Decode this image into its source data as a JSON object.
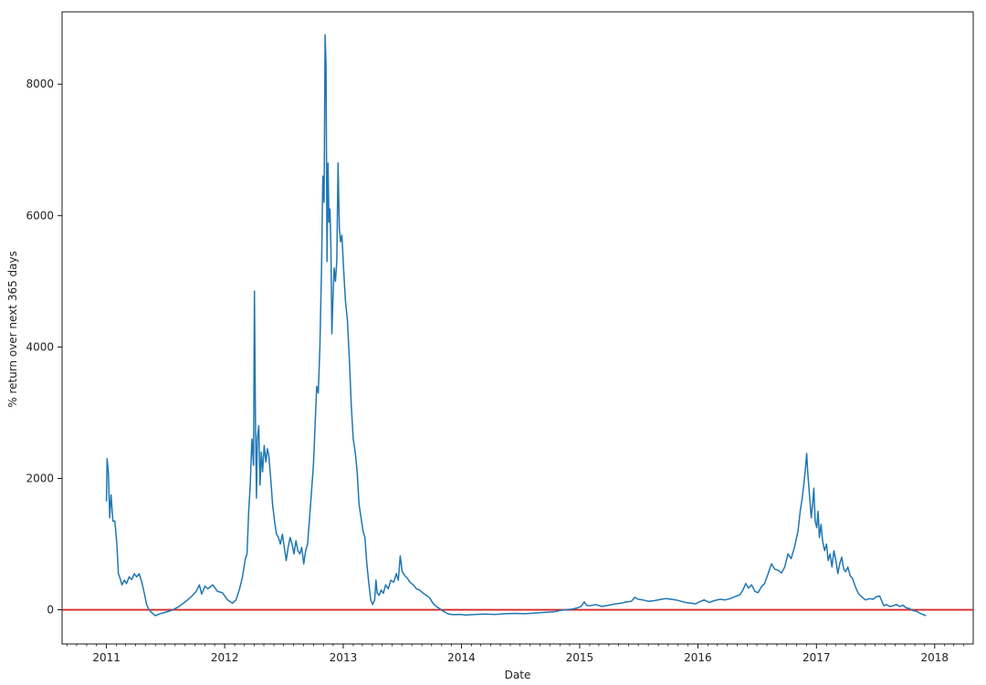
{
  "chart_data": {
    "type": "line",
    "xlabel": "Date",
    "ylabel": "% return over next 365 days",
    "xlim": [
      "2010-08-17",
      "2018-04-30"
    ],
    "ylim": [
      -520,
      9100
    ],
    "yticks": [
      0,
      2000,
      4000,
      6000,
      8000
    ],
    "ytick_labels": [
      "0",
      "2000",
      "4000",
      "6000",
      "8000"
    ],
    "xticks": [
      {
        "label": "2011",
        "date": "2011-01-01"
      },
      {
        "label": "2012",
        "date": "2012-01-01"
      },
      {
        "label": "2013",
        "date": "2013-01-01"
      },
      {
        "label": "2014",
        "date": "2014-01-01"
      },
      {
        "label": "2015",
        "date": "2015-01-01"
      },
      {
        "label": "2016",
        "date": "2016-01-01"
      },
      {
        "label": "2017",
        "date": "2017-01-01"
      },
      {
        "label": "2018",
        "date": "2018-01-01"
      }
    ],
    "grid": false,
    "reference_line": {
      "y": 0,
      "color": "#d62728"
    },
    "series": [
      {
        "color": "#1f77b4",
        "points": [
          [
            "2011-01-01",
            1650
          ],
          [
            "2011-01-03",
            2300
          ],
          [
            "2011-01-07",
            2100
          ],
          [
            "2011-01-11",
            1400
          ],
          [
            "2011-01-15",
            1750
          ],
          [
            "2011-01-21",
            1350
          ],
          [
            "2011-01-27",
            1350
          ],
          [
            "2011-02-02",
            1000
          ],
          [
            "2011-02-07",
            550
          ],
          [
            "2011-02-12",
            480
          ],
          [
            "2011-02-18",
            380
          ],
          [
            "2011-02-25",
            450
          ],
          [
            "2011-03-04",
            400
          ],
          [
            "2011-03-12",
            500
          ],
          [
            "2011-03-20",
            460
          ],
          [
            "2011-03-28",
            550
          ],
          [
            "2011-04-04",
            500
          ],
          [
            "2011-04-12",
            550
          ],
          [
            "2011-04-20",
            420
          ],
          [
            "2011-04-28",
            250
          ],
          [
            "2011-05-05",
            80
          ],
          [
            "2011-05-12",
            0
          ],
          [
            "2011-05-20",
            -40
          ],
          [
            "2011-06-01",
            -90
          ],
          [
            "2011-06-15",
            -60
          ],
          [
            "2011-07-01",
            -40
          ],
          [
            "2011-07-20",
            -10
          ],
          [
            "2011-08-10",
            40
          ],
          [
            "2011-09-01",
            120
          ],
          [
            "2011-09-20",
            200
          ],
          [
            "2011-10-05",
            280
          ],
          [
            "2011-10-15",
            380
          ],
          [
            "2011-10-22",
            240
          ],
          [
            "2011-11-01",
            360
          ],
          [
            "2011-11-10",
            320
          ],
          [
            "2011-11-25",
            380
          ],
          [
            "2011-12-10",
            280
          ],
          [
            "2011-12-25",
            260
          ],
          [
            "2012-01-10",
            150
          ],
          [
            "2012-01-25",
            100
          ],
          [
            "2012-02-05",
            150
          ],
          [
            "2012-02-15",
            300
          ],
          [
            "2012-02-25",
            500
          ],
          [
            "2012-03-05",
            780
          ],
          [
            "2012-03-10",
            850
          ],
          [
            "2012-03-15",
            1500
          ],
          [
            "2012-03-20",
            1900
          ],
          [
            "2012-03-25",
            2600
          ],
          [
            "2012-03-30",
            2200
          ],
          [
            "2012-04-02",
            4850
          ],
          [
            "2012-04-05",
            2900
          ],
          [
            "2012-04-08",
            1700
          ],
          [
            "2012-04-11",
            2600
          ],
          [
            "2012-04-15",
            2800
          ],
          [
            "2012-04-19",
            1900
          ],
          [
            "2012-04-23",
            2400
          ],
          [
            "2012-04-27",
            2100
          ],
          [
            "2012-05-02",
            2500
          ],
          [
            "2012-05-07",
            2250
          ],
          [
            "2012-05-12",
            2450
          ],
          [
            "2012-05-16",
            2350
          ],
          [
            "2012-05-22",
            2000
          ],
          [
            "2012-05-28",
            1600
          ],
          [
            "2012-06-03",
            1350
          ],
          [
            "2012-06-09",
            1150
          ],
          [
            "2012-06-15",
            1100
          ],
          [
            "2012-06-21",
            1000
          ],
          [
            "2012-06-27",
            1150
          ],
          [
            "2012-07-03",
            950
          ],
          [
            "2012-07-09",
            750
          ],
          [
            "2012-07-15",
            950
          ],
          [
            "2012-07-21",
            1100
          ],
          [
            "2012-07-27",
            1000
          ],
          [
            "2012-08-02",
            850
          ],
          [
            "2012-08-08",
            1050
          ],
          [
            "2012-08-14",
            900
          ],
          [
            "2012-08-20",
            850
          ],
          [
            "2012-08-26",
            950
          ],
          [
            "2012-09-01",
            700
          ],
          [
            "2012-09-07",
            900
          ],
          [
            "2012-09-13",
            1000
          ],
          [
            "2012-09-19",
            1400
          ],
          [
            "2012-09-25",
            1800
          ],
          [
            "2012-10-01",
            2200
          ],
          [
            "2012-10-06",
            2800
          ],
          [
            "2012-10-11",
            3400
          ],
          [
            "2012-10-16",
            3300
          ],
          [
            "2012-10-21",
            4000
          ],
          [
            "2012-10-26",
            5200
          ],
          [
            "2012-10-30",
            6600
          ],
          [
            "2012-11-03",
            6200
          ],
          [
            "2012-11-06",
            8750
          ],
          [
            "2012-11-09",
            8300
          ],
          [
            "2012-11-12",
            5300
          ],
          [
            "2012-11-15",
            6800
          ],
          [
            "2012-11-18",
            5900
          ],
          [
            "2012-11-21",
            6100
          ],
          [
            "2012-11-24",
            5500
          ],
          [
            "2012-11-27",
            4200
          ],
          [
            "2012-11-30",
            4700
          ],
          [
            "2012-12-04",
            5200
          ],
          [
            "2012-12-08",
            5000
          ],
          [
            "2012-12-12",
            5300
          ],
          [
            "2012-12-16",
            6800
          ],
          [
            "2012-12-20",
            5800
          ],
          [
            "2012-12-24",
            5600
          ],
          [
            "2012-12-28",
            5700
          ],
          [
            "2013-01-02",
            5200
          ],
          [
            "2013-01-08",
            4700
          ],
          [
            "2013-01-14",
            4400
          ],
          [
            "2013-01-20",
            3800
          ],
          [
            "2013-01-26",
            3100
          ],
          [
            "2013-02-01",
            2600
          ],
          [
            "2013-02-07",
            2400
          ],
          [
            "2013-02-13",
            2100
          ],
          [
            "2013-02-19",
            1600
          ],
          [
            "2013-02-25",
            1400
          ],
          [
            "2013-03-03",
            1200
          ],
          [
            "2013-03-09",
            1100
          ],
          [
            "2013-03-15",
            700
          ],
          [
            "2013-03-21",
            400
          ],
          [
            "2013-03-27",
            150
          ],
          [
            "2013-04-02",
            80
          ],
          [
            "2013-04-08",
            150
          ],
          [
            "2013-04-12",
            450
          ],
          [
            "2013-04-16",
            250
          ],
          [
            "2013-04-22",
            220
          ],
          [
            "2013-04-28",
            300
          ],
          [
            "2013-05-05",
            250
          ],
          [
            "2013-05-12",
            380
          ],
          [
            "2013-05-20",
            320
          ],
          [
            "2013-05-28",
            450
          ],
          [
            "2013-06-06",
            420
          ],
          [
            "2013-06-14",
            550
          ],
          [
            "2013-06-20",
            450
          ],
          [
            "2013-06-26",
            820
          ],
          [
            "2013-07-02",
            580
          ],
          [
            "2013-07-10",
            520
          ],
          [
            "2013-07-18",
            480
          ],
          [
            "2013-07-26",
            420
          ],
          [
            "2013-08-05",
            380
          ],
          [
            "2013-08-15",
            320
          ],
          [
            "2013-08-25",
            300
          ],
          [
            "2013-09-05",
            250
          ],
          [
            "2013-09-15",
            220
          ],
          [
            "2013-09-25",
            180
          ],
          [
            "2013-10-05",
            100
          ],
          [
            "2013-10-15",
            50
          ],
          [
            "2013-10-25",
            20
          ],
          [
            "2013-11-05",
            -20
          ],
          [
            "2013-11-20",
            -60
          ],
          [
            "2013-12-05",
            -75
          ],
          [
            "2013-12-25",
            -70
          ],
          [
            "2014-01-15",
            -80
          ],
          [
            "2014-02-15",
            -70
          ],
          [
            "2014-03-15",
            -65
          ],
          [
            "2014-04-15",
            -70
          ],
          [
            "2014-05-15",
            -60
          ],
          [
            "2014-06-15",
            -55
          ],
          [
            "2014-07-15",
            -60
          ],
          [
            "2014-08-15",
            -50
          ],
          [
            "2014-09-15",
            -40
          ],
          [
            "2014-10-15",
            -30
          ],
          [
            "2014-11-01",
            -10
          ],
          [
            "2014-11-20",
            0
          ],
          [
            "2014-12-10",
            10
          ],
          [
            "2014-12-25",
            30
          ],
          [
            "2015-01-05",
            50
          ],
          [
            "2015-01-15",
            120
          ],
          [
            "2015-01-22",
            70
          ],
          [
            "2015-02-01",
            60
          ],
          [
            "2015-02-20",
            80
          ],
          [
            "2015-03-10",
            50
          ],
          [
            "2015-04-01",
            70
          ],
          [
            "2015-04-20",
            90
          ],
          [
            "2015-05-10",
            100
          ],
          [
            "2015-05-25",
            120
          ],
          [
            "2015-06-10",
            130
          ],
          [
            "2015-06-20",
            190
          ],
          [
            "2015-07-01",
            160
          ],
          [
            "2015-07-15",
            150
          ],
          [
            "2015-08-01",
            130
          ],
          [
            "2015-08-20",
            140
          ],
          [
            "2015-09-10",
            160
          ],
          [
            "2015-09-25",
            170
          ],
          [
            "2015-10-10",
            160
          ],
          [
            "2015-10-25",
            150
          ],
          [
            "2015-11-10",
            130
          ],
          [
            "2015-11-25",
            110
          ],
          [
            "2015-12-10",
            100
          ],
          [
            "2015-12-25",
            90
          ],
          [
            "2016-01-05",
            120
          ],
          [
            "2016-01-20",
            150
          ],
          [
            "2016-02-05",
            110
          ],
          [
            "2016-02-20",
            140
          ],
          [
            "2016-03-10",
            160
          ],
          [
            "2016-03-25",
            150
          ],
          [
            "2016-04-10",
            170
          ],
          [
            "2016-04-25",
            200
          ],
          [
            "2016-05-10",
            230
          ],
          [
            "2016-05-20",
            310
          ],
          [
            "2016-05-28",
            400
          ],
          [
            "2016-06-05",
            330
          ],
          [
            "2016-06-15",
            380
          ],
          [
            "2016-06-25",
            280
          ],
          [
            "2016-07-05",
            260
          ],
          [
            "2016-07-15",
            350
          ],
          [
            "2016-07-25",
            400
          ],
          [
            "2016-08-05",
            550
          ],
          [
            "2016-08-15",
            700
          ],
          [
            "2016-08-25",
            620
          ],
          [
            "2016-09-05",
            600
          ],
          [
            "2016-09-15",
            560
          ],
          [
            "2016-09-25",
            650
          ],
          [
            "2016-10-05",
            850
          ],
          [
            "2016-10-15",
            780
          ],
          [
            "2016-10-25",
            950
          ],
          [
            "2016-11-05",
            1200
          ],
          [
            "2016-11-12",
            1500
          ],
          [
            "2016-11-18",
            1700
          ],
          [
            "2016-11-24",
            1950
          ],
          [
            "2016-11-28",
            2150
          ],
          [
            "2016-12-02",
            2380
          ],
          [
            "2016-12-05",
            2100
          ],
          [
            "2016-12-08",
            1900
          ],
          [
            "2016-12-12",
            1650
          ],
          [
            "2016-12-16",
            1400
          ],
          [
            "2016-12-20",
            1600
          ],
          [
            "2016-12-24",
            1850
          ],
          [
            "2016-12-28",
            1350
          ],
          [
            "2017-01-02",
            1250
          ],
          [
            "2017-01-06",
            1500
          ],
          [
            "2017-01-10",
            1100
          ],
          [
            "2017-01-15",
            1300
          ],
          [
            "2017-01-20",
            1050
          ],
          [
            "2017-01-26",
            900
          ],
          [
            "2017-02-01",
            1000
          ],
          [
            "2017-02-06",
            750
          ],
          [
            "2017-02-12",
            850
          ],
          [
            "2017-02-18",
            650
          ],
          [
            "2017-02-24",
            900
          ],
          [
            "2017-03-02",
            750
          ],
          [
            "2017-03-08",
            550
          ],
          [
            "2017-03-14",
            700
          ],
          [
            "2017-03-20",
            800
          ],
          [
            "2017-03-26",
            620
          ],
          [
            "2017-04-01",
            580
          ],
          [
            "2017-04-08",
            650
          ],
          [
            "2017-04-15",
            520
          ],
          [
            "2017-04-22",
            480
          ],
          [
            "2017-05-01",
            350
          ],
          [
            "2017-05-10",
            250
          ],
          [
            "2017-05-20",
            200
          ],
          [
            "2017-06-01",
            150
          ],
          [
            "2017-06-15",
            170
          ],
          [
            "2017-06-25",
            160
          ],
          [
            "2017-07-05",
            200
          ],
          [
            "2017-07-15",
            210
          ],
          [
            "2017-07-22",
            130
          ],
          [
            "2017-07-28",
            60
          ],
          [
            "2017-08-05",
            80
          ],
          [
            "2017-08-15",
            50
          ],
          [
            "2017-08-25",
            60
          ],
          [
            "2017-09-05",
            80
          ],
          [
            "2017-09-15",
            50
          ],
          [
            "2017-09-25",
            70
          ],
          [
            "2017-10-05",
            30
          ],
          [
            "2017-10-15",
            20
          ],
          [
            "2017-10-25",
            -10
          ],
          [
            "2017-11-05",
            -20
          ],
          [
            "2017-11-15",
            -50
          ],
          [
            "2017-11-25",
            -70
          ],
          [
            "2017-12-05",
            -90
          ]
        ]
      }
    ]
  }
}
